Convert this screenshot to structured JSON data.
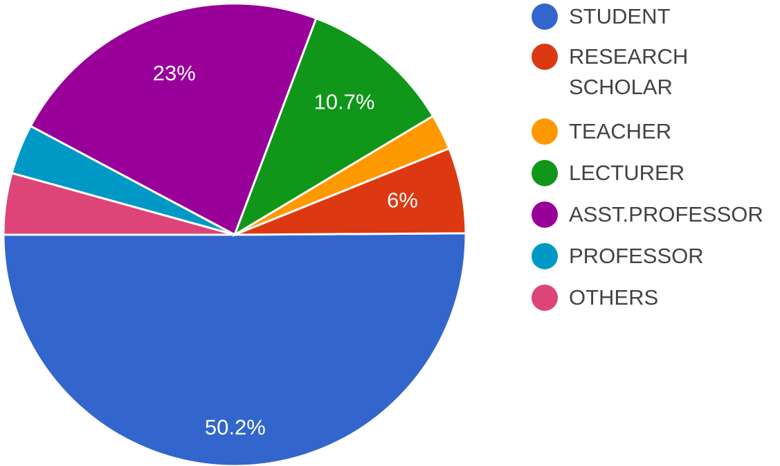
{
  "chart_data": {
    "type": "pie",
    "slices": [
      {
        "label": "STUDENT",
        "value": 50.2,
        "value_label": "50.2%",
        "color": "#3366cc"
      },
      {
        "label": "RESEARCH\nSCHOLAR",
        "value": 6,
        "value_label": "6%",
        "color": "#dc3912"
      },
      {
        "label": "TEACHER",
        "value": 2.5,
        "value_label": "",
        "color": "#ff9900"
      },
      {
        "label": "LECTURER",
        "value": 10.7,
        "value_label": "10.7%",
        "color": "#109618"
      },
      {
        "label": "ASST.PROFESSOR",
        "value": 23,
        "value_label": "23%",
        "color": "#990099"
      },
      {
        "label": "PROFESSOR",
        "value": 3.5,
        "value_label": "",
        "color": "#0099c6"
      },
      {
        "label": "OTHERS",
        "value": 4.3,
        "value_label": "",
        "color": "#dd4477"
      }
    ],
    "legend_placement": "right"
  }
}
